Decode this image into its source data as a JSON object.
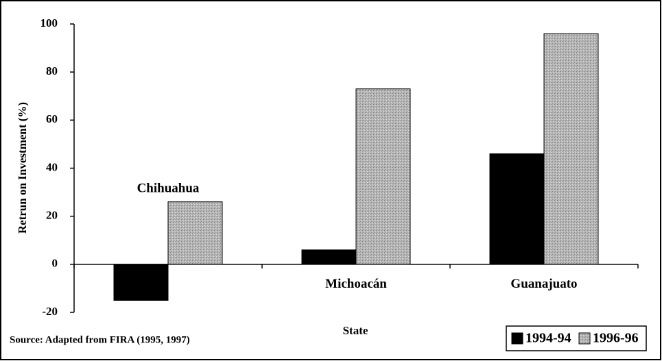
{
  "chart_data": {
    "type": "bar",
    "categories": [
      "Chihuahua",
      "Michoacán",
      "Guanajuato"
    ],
    "series": [
      {
        "name": "1994-94",
        "color": "#000000",
        "values": [
          -15,
          6,
          46
        ]
      },
      {
        "name": "1996-96",
        "color": "#a8a8a8",
        "values": [
          26,
          73,
          96
        ]
      }
    ],
    "ylabel": "Retrun on Investment (%)",
    "xlabel": "State",
    "annotation": "Source: Adapted from FIRA (1995, 1997)",
    "ylim": [
      -20,
      100
    ],
    "yticks": [
      -20,
      0,
      20,
      40,
      60,
      80,
      100
    ],
    "legend": "lower right"
  }
}
